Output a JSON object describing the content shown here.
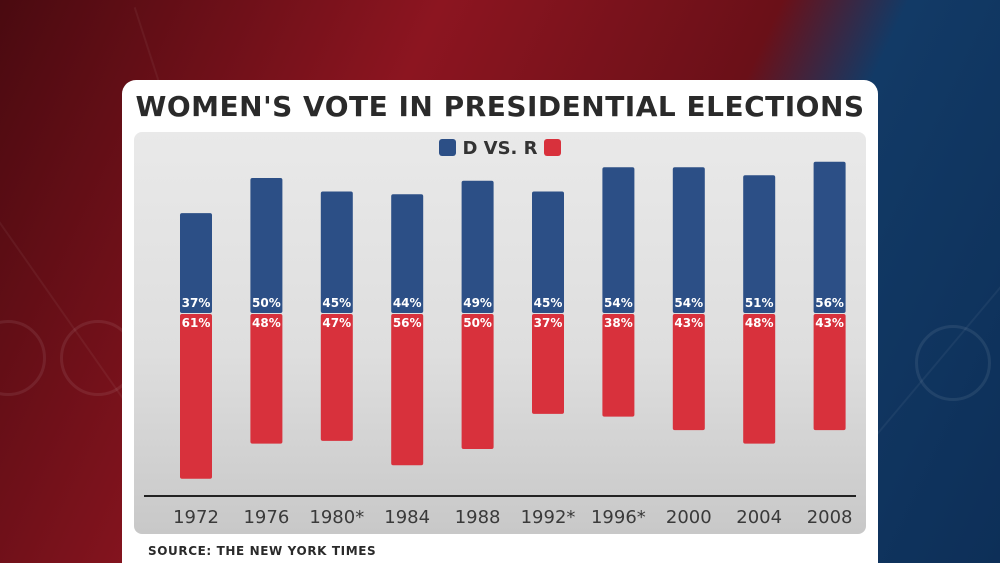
{
  "chart_data": {
    "type": "bar",
    "title": "WOMEN'S VOTE IN PRESIDENTIAL ELECTIONS",
    "legend_label": "D VS. R",
    "categories": [
      "1972",
      "1976",
      "1980*",
      "1984",
      "1988",
      "1992*",
      "1996*",
      "2000",
      "2004",
      "2008"
    ],
    "series": [
      {
        "name": "D",
        "values": [
          37,
          50,
          45,
          44,
          49,
          45,
          54,
          54,
          51,
          56
        ]
      },
      {
        "name": "R",
        "values": [
          61,
          48,
          47,
          56,
          50,
          37,
          38,
          43,
          48,
          43
        ]
      }
    ],
    "value_suffix": "%",
    "xlabel": "",
    "ylabel": ""
  },
  "colors": {
    "democrat": "#2c4f86",
    "republican": "#d8313c"
  },
  "source": "SOURCE: THE NEW YORK TIMES"
}
